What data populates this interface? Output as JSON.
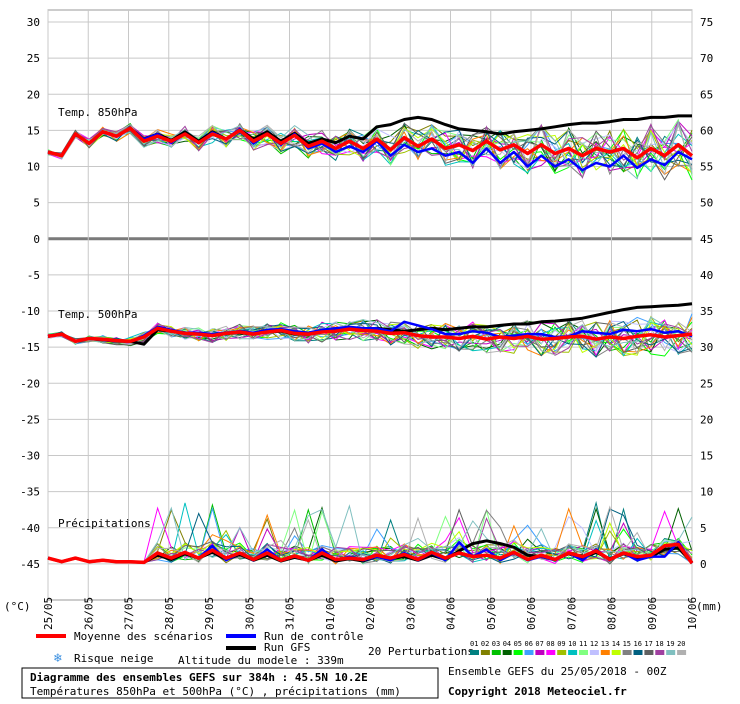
{
  "chart_data": {
    "type": "line",
    "title": "Diagramme des ensembles GEFS sur 384h : 45.5N 10.2E",
    "subtitle": "Températures 850hPa et 500hPa (°C) , précipitations (mm)",
    "source": "Ensemble GEFS du 25/05/2018 - 00Z",
    "copyright": "Copyright 2018 Meteociel.fr",
    "left_axis_unit": "(°C)",
    "right_axis_unit": "(mm)",
    "left_ticks": [
      30,
      25,
      20,
      15,
      10,
      5,
      0,
      -5,
      -10,
      -15,
      -20,
      -25,
      -30,
      -35,
      -40,
      -45
    ],
    "right_ticks": [
      75,
      70,
      65,
      60,
      55,
      50,
      45,
      40,
      35,
      30,
      25,
      20,
      15,
      10,
      5,
      0
    ],
    "ylim": [
      -50,
      30
    ],
    "x_labels": [
      "25/05",
      "26/05",
      "27/05",
      "28/05",
      "29/05",
      "30/05",
      "31/05",
      "01/06",
      "02/06",
      "03/06",
      "04/06",
      "05/06",
      "06/06",
      "07/06",
      "08/06",
      "09/06",
      "10/06"
    ],
    "panel_labels": {
      "t850": "Temp. 850hPa",
      "t500": "Temp. 500hPa",
      "precip": "Précipitations"
    },
    "legend": {
      "mean": "Moyenne des scénarios",
      "control": "Run de contrôle",
      "gfs": "Run GFS",
      "snow_risk": "Risque neige",
      "altitude": "Altitude du modele : 339m",
      "perturbations": "20 Perturbations",
      "member_numbers": [
        "01",
        "02",
        "03",
        "04",
        "05",
        "06",
        "07",
        "08",
        "09",
        "10",
        "11",
        "12",
        "13",
        "14",
        "15",
        "16",
        "17",
        "18",
        "19",
        "20"
      ]
    },
    "colors": {
      "mean": "#ff0000",
      "control": "#0000ff",
      "gfs": "#000000",
      "members": [
        "#008080",
        "#808000",
        "#00c000",
        "#006000",
        "#00ff00",
        "#40a0ff",
        "#c000c0",
        "#ff00ff",
        "#a0c000",
        "#00c0c0",
        "#80ff80",
        "#c0c0ff",
        "#ff8000",
        "#c0ff00",
        "#808080",
        "#006080",
        "#606060",
        "#a040a0",
        "#80c0c0",
        "#b0b0b0"
      ]
    },
    "series": [
      {
        "name": "Temp. 850hPa - Moyenne des scénarios",
        "values": [
          12,
          11.5,
          14.5,
          13.2,
          14.8,
          14.2,
          15.3,
          13.5,
          14.2,
          13.5,
          14.5,
          13.3,
          14.5,
          13.8,
          15,
          13.5,
          14.5,
          13.2,
          14.3,
          12.8,
          13.5,
          12.5,
          13.5,
          12.5,
          13.8,
          12.3,
          14,
          12.8,
          13.8,
          12.5,
          13,
          12.2,
          13.5,
          12.3,
          13,
          11.8,
          13,
          11.8,
          12.5,
          11.5,
          12.5,
          12,
          12.5,
          11.2,
          12.5,
          11.5,
          13,
          11.5
        ]
      },
      {
        "name": "Temp. 850hPa - Run de contrôle",
        "values": [
          12,
          11.5,
          14.5,
          13.2,
          14.8,
          14.2,
          15.3,
          13.8,
          14.5,
          13.3,
          14.5,
          13.2,
          14.7,
          13.8,
          15.2,
          13.2,
          14.5,
          13,
          14.5,
          12.5,
          13.2,
          12,
          12.8,
          12,
          13.5,
          11.5,
          13,
          12,
          12.5,
          11.5,
          12,
          10.5,
          12.5,
          10.5,
          12,
          10,
          11.5,
          10,
          11,
          9.5,
          10.5,
          10,
          11.5,
          9.8,
          11,
          10.2,
          12,
          11
        ]
      },
      {
        "name": "Temp. 850hPa - Run GFS",
        "values": [
          12,
          11.5,
          14.5,
          13.2,
          14.8,
          14.2,
          15.3,
          13.8,
          14.5,
          13.6,
          14.8,
          13.5,
          14.8,
          13.8,
          15.1,
          13.8,
          14.8,
          13.5,
          14.6,
          13.2,
          13.8,
          13.3,
          14.2,
          13.8,
          15.5,
          15.8,
          16.5,
          16.8,
          16.5,
          15.8,
          15.2,
          15,
          14.8,
          14.5,
          14.8,
          15,
          15.2,
          15.5,
          15.8,
          16,
          16,
          16.2,
          16.5,
          16.5,
          16.8,
          16.8,
          17,
          17
        ]
      },
      {
        "name": "Temp. 500hPa - Moyenne des scénarios",
        "values": [
          -13.5,
          -13.2,
          -14.2,
          -13.8,
          -13.9,
          -14.1,
          -14.2,
          -13.6,
          -12.4,
          -12.8,
          -13.1,
          -13.2,
          -13.4,
          -13.1,
          -12.9,
          -13.2,
          -12.9,
          -12.7,
          -13.1,
          -13.2,
          -12.9,
          -12.8,
          -12.5,
          -12.7,
          -12.8,
          -13.1,
          -13,
          -13.4,
          -13.6,
          -13.6,
          -13.8,
          -13.5,
          -13.9,
          -13.6,
          -13.8,
          -13.5,
          -13.9,
          -13.8,
          -13.6,
          -13.5,
          -13.9,
          -13.6,
          -13.8,
          -13.5,
          -13.3,
          -13.6,
          -13.4,
          -13.2
        ]
      },
      {
        "name": "Temp. 500hPa - Run de contrôle",
        "values": [
          -13.5,
          -13.2,
          -14.2,
          -13.8,
          -14,
          -14.2,
          -14.2,
          -13.4,
          -12.2,
          -12.6,
          -13,
          -13,
          -13.2,
          -13,
          -12.8,
          -13,
          -12.6,
          -12.5,
          -12.8,
          -13,
          -12.6,
          -12.4,
          -12.2,
          -12.4,
          -12.4,
          -12.8,
          -11.5,
          -12,
          -12.5,
          -13.2,
          -13.2,
          -12.8,
          -13,
          -13.6,
          -13.4,
          -13.2,
          -13.2,
          -13.6,
          -13.5,
          -12.8,
          -13,
          -13.2,
          -12.6,
          -12.8,
          -12.5,
          -13,
          -12.8,
          -13.5
        ]
      },
      {
        "name": "Temp. 500hPa - Run GFS",
        "values": [
          -13.5,
          -13.2,
          -14.2,
          -13.8,
          -14,
          -14.2,
          -14.2,
          -14.6,
          -12.6,
          -12.8,
          -13,
          -13.2,
          -13.4,
          -13.1,
          -13,
          -13.2,
          -12.9,
          -12.8,
          -13.2,
          -13.2,
          -12.8,
          -12.7,
          -12.5,
          -12.6,
          -12.4,
          -12.6,
          -12.8,
          -12.6,
          -12.4,
          -12.6,
          -12.4,
          -12.2,
          -12.2,
          -12,
          -11.8,
          -11.8,
          -11.5,
          -11.4,
          -11.2,
          -11,
          -10.6,
          -10.2,
          -9.8,
          -9.5,
          -9.4,
          -9.3,
          -9.2,
          -9
        ]
      },
      {
        "name": "Précipitations - Moyenne des scénarios",
        "values": [
          0.8,
          0.3,
          0.8,
          0.3,
          0.5,
          0.3,
          0.3,
          0.2,
          1.5,
          0.8,
          1.6,
          0.8,
          1.9,
          0.8,
          1.5,
          0.6,
          1.5,
          0.5,
          1.1,
          0.5,
          1.5,
          0.6,
          0.8,
          0.6,
          1.2,
          0.8,
          1.3,
          0.6,
          1.6,
          0.8,
          1.5,
          1,
          1.2,
          0.8,
          1.6,
          0.6,
          1.2,
          0.6,
          1.5,
          1,
          1.8,
          0.6,
          1.5,
          1,
          1.2,
          2.5,
          2.7,
          0.1
        ]
      },
      {
        "name": "Précipitations - Run de contrôle",
        "values": [
          0.8,
          0.3,
          0.8,
          0.3,
          0.5,
          0.3,
          0.3,
          0.2,
          1.5,
          0.8,
          1.6,
          0.8,
          2.5,
          0.5,
          1.5,
          0.5,
          2,
          0.5,
          1,
          0.5,
          2,
          0.5,
          1,
          0.5,
          1,
          0.5,
          1.5,
          0.5,
          1.5,
          0.5,
          3,
          1,
          2,
          0.5,
          1.5,
          0.5,
          1,
          0.5,
          1.5,
          0.5,
          2,
          0.5,
          1.5,
          0.5,
          1,
          1,
          3,
          0.1
        ]
      },
      {
        "name": "Précipitations - Run GFS",
        "values": [
          0.8,
          0.3,
          0.8,
          0.3,
          0.5,
          0.3,
          0.3,
          0.2,
          1.2,
          0.6,
          1.4,
          0.8,
          1.6,
          0.6,
          1.3,
          0.5,
          1.2,
          0.4,
          0.9,
          0.5,
          1.2,
          0.4,
          0.7,
          0.4,
          1,
          0.7,
          1,
          0.5,
          1.2,
          0.6,
          1.8,
          2.8,
          3.2,
          2.8,
          2.3,
          1.2,
          1,
          0.6,
          1.4,
          0.8,
          1.6,
          0.7,
          1.4,
          0.8,
          1,
          2,
          2.2,
          0.2
        ]
      }
    ]
  }
}
